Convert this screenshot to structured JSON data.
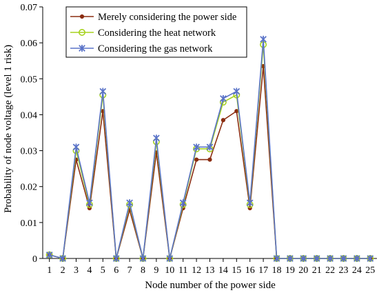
{
  "chart_data": {
    "type": "line",
    "title": "",
    "xlabel": "Node number of the power side",
    "ylabel": "Probability of node voltage (level 1 risk)",
    "x": [
      1,
      2,
      3,
      4,
      5,
      6,
      7,
      8,
      9,
      10,
      11,
      12,
      13,
      14,
      15,
      16,
      17,
      18,
      19,
      20,
      21,
      22,
      23,
      24,
      25
    ],
    "x_tick_labels": [
      "1",
      "2",
      "3",
      "4",
      "5",
      "6",
      "7",
      "8",
      "9",
      "10",
      "11",
      "12",
      "13",
      "14",
      "15",
      "16",
      "17",
      "18",
      "19",
      "20",
      "21",
      "22",
      "23",
      "24",
      "25"
    ],
    "ylim": [
      0,
      0.07
    ],
    "y_ticks": [
      0,
      0.01,
      0.02,
      0.03,
      0.04,
      0.05,
      0.06,
      0.07
    ],
    "y_tick_labels": [
      "0",
      "0.01",
      "0.02",
      "0.03",
      "0.04",
      "0.05",
      "0.06",
      "0.07"
    ],
    "grid": false,
    "legend_position": "top-left",
    "series": [
      {
        "name": "Merely considering the power side",
        "color": "#8b2d10",
        "marker": "dot",
        "values": [
          0.001,
          0,
          0.0275,
          0.014,
          0.041,
          0,
          0.0135,
          0,
          0.0295,
          0,
          0.014,
          0.0275,
          0.0275,
          0.0385,
          0.041,
          0.014,
          0.0535,
          0,
          0,
          0,
          0,
          0,
          0,
          0,
          0
        ]
      },
      {
        "name": "Considering the heat network",
        "color": "#a6d21e",
        "marker": "circle",
        "values": [
          0.001,
          0,
          0.03,
          0.015,
          0.0455,
          0,
          0.015,
          0,
          0.0325,
          0,
          0.015,
          0.0305,
          0.0305,
          0.0435,
          0.0455,
          0.015,
          0.0595,
          0,
          0,
          0,
          0,
          0,
          0,
          0,
          0
        ]
      },
      {
        "name": "Considering the gas network",
        "color": "#5a73c8",
        "marker": "star",
        "values": [
          0.001,
          0,
          0.031,
          0.0155,
          0.0465,
          0,
          0.0155,
          0,
          0.0335,
          0,
          0.0155,
          0.031,
          0.031,
          0.0445,
          0.0465,
          0.0155,
          0.061,
          0,
          0,
          0,
          0,
          0,
          0,
          0,
          0
        ]
      }
    ]
  }
}
